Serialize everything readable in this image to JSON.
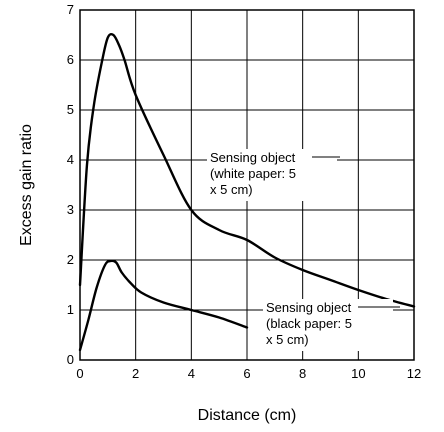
{
  "chart_data": {
    "type": "line",
    "title": "",
    "xlabel": "Distance (cm)",
    "ylabel": "Excess gain ratio",
    "xlim": [
      0,
      12
    ],
    "ylim": [
      0,
      7
    ],
    "xticks": [
      0,
      2,
      4,
      6,
      8,
      10,
      12
    ],
    "yticks": [
      0,
      1,
      2,
      3,
      4,
      5,
      6,
      7
    ],
    "grid": true,
    "series": [
      {
        "x": [
          0,
          0.25,
          0.5,
          0.8,
          1.0,
          1.2,
          1.4,
          1.6,
          2.0,
          3.0,
          4.0,
          5.0,
          6.0,
          7.0,
          8.0,
          9.0,
          10.0,
          11.0,
          12.0
        ],
        "y": [
          1.5,
          3.9,
          5.1,
          6.0,
          6.45,
          6.5,
          6.3,
          6.0,
          5.3,
          4.1,
          3.0,
          2.6,
          2.4,
          2.05,
          1.8,
          1.6,
          1.4,
          1.22,
          1.07
        ]
      },
      {
        "x": [
          0,
          0.3,
          0.6,
          0.9,
          1.1,
          1.3,
          1.5,
          1.8,
          2.2,
          3.0,
          4.0,
          5.0,
          6.0
        ],
        "y": [
          0.2,
          0.8,
          1.45,
          1.9,
          1.98,
          1.95,
          1.75,
          1.55,
          1.35,
          1.15,
          1.0,
          0.85,
          0.65
        ]
      }
    ],
    "annotations": [
      {
        "lines": [
          "Sensing object",
          "(white paper: 5",
          "x 5 cm)"
        ]
      },
      {
        "lines": [
          "Sensing object",
          "(black paper: 5",
          "x 5 cm)"
        ]
      }
    ]
  }
}
